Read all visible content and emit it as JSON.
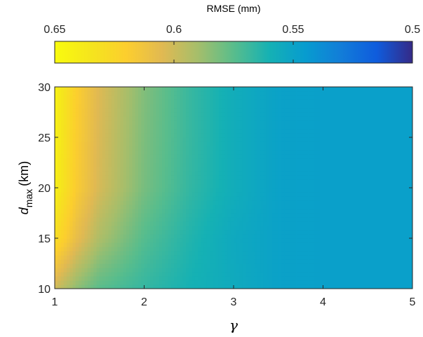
{
  "chart_data": {
    "type": "heatmap",
    "title": "",
    "xlabel": "γ",
    "ylabel": {
      "symbol": "d",
      "subscript": "max",
      "unit": "(km)"
    },
    "xlim": [
      1,
      5
    ],
    "ylim": [
      10,
      30
    ],
    "x_ticks": [
      "1",
      "2",
      "3",
      "4",
      "5"
    ],
    "y_ticks": [
      "10",
      "15",
      "20",
      "25",
      "30"
    ],
    "x_tick_values": [
      1,
      2,
      3,
      4,
      5
    ],
    "y_tick_values": [
      10,
      15,
      20,
      25,
      30
    ],
    "colorbar": {
      "title": "RMSE (mm)",
      "range": [
        0.65,
        0.5
      ],
      "ticks": [
        "0.65",
        "0.6",
        "0.55",
        "0.5"
      ],
      "tick_values": [
        0.65,
        0.6,
        0.55,
        0.5
      ],
      "colormap": "parula",
      "orientation": "horizontal",
      "placement": "top",
      "direction": "reversed"
    },
    "x": [
      1.0,
      1.25,
      1.5,
      2.0,
      2.5,
      3.0,
      3.5,
      4.0,
      4.5,
      5.0
    ],
    "y": [
      10,
      15,
      20,
      25,
      30
    ],
    "values": [
      [
        0.6,
        0.585,
        0.575,
        0.567,
        0.56,
        0.555,
        0.549,
        0.548,
        0.548,
        0.548
      ],
      [
        0.63,
        0.608,
        0.592,
        0.574,
        0.563,
        0.554,
        0.549,
        0.548,
        0.548,
        0.548
      ],
      [
        0.642,
        0.618,
        0.602,
        0.581,
        0.567,
        0.557,
        0.549,
        0.548,
        0.548,
        0.548
      ],
      [
        0.643,
        0.619,
        0.603,
        0.582,
        0.568,
        0.557,
        0.549,
        0.548,
        0.548,
        0.548
      ],
      [
        0.644,
        0.62,
        0.604,
        0.583,
        0.568,
        0.557,
        0.549,
        0.548,
        0.548,
        0.548
      ]
    ],
    "grid": false,
    "legend": "none"
  }
}
